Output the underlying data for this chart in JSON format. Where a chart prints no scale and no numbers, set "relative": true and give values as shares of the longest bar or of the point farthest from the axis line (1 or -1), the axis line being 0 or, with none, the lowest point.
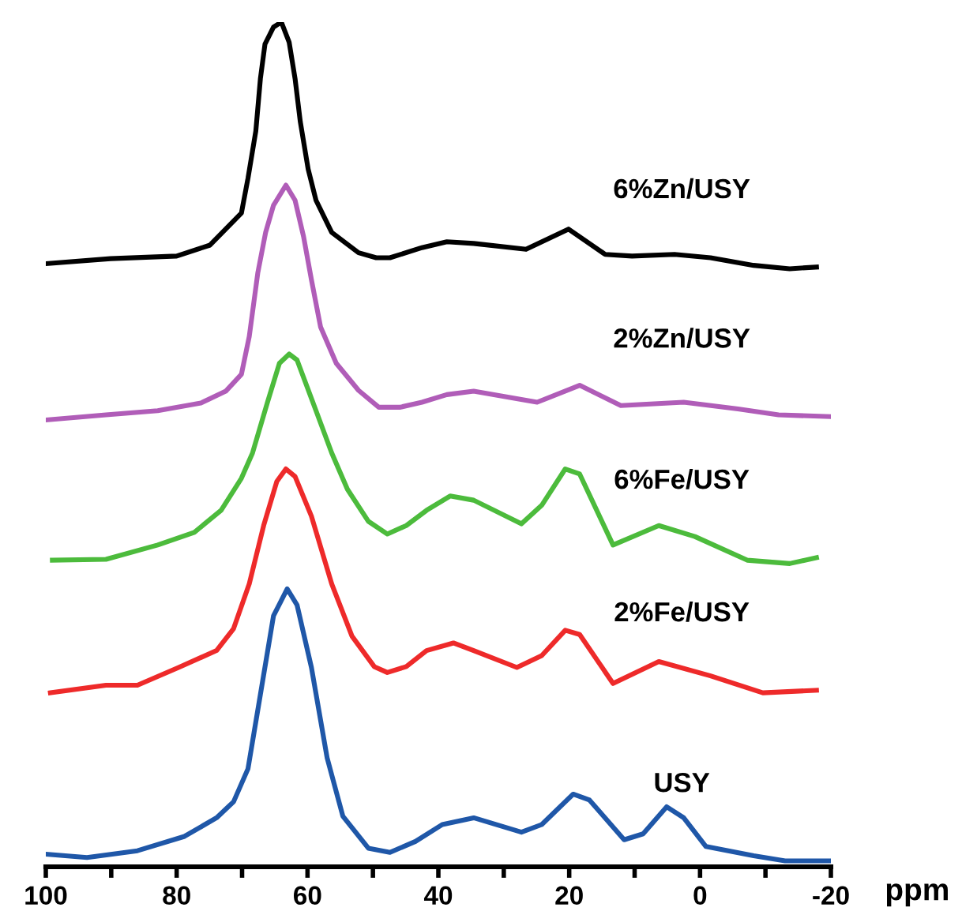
{
  "chart_data": {
    "type": "line",
    "relative": true,
    "xlabel": "ppm",
    "xlim": [
      100,
      -20
    ],
    "xticks": [
      100,
      {
        "value": 90,
        "label": null
      },
      80,
      {
        "value": 70,
        "label": null
      },
      60,
      {
        "value": 50,
        "label": null
      },
      40,
      {
        "value": 30,
        "label": null
      },
      20,
      {
        "value": 10,
        "label": null
      },
      0,
      {
        "value": -10,
        "label": null
      },
      -20
    ],
    "tick_labels": "x",
    "grid": false,
    "legend": false,
    "marker": "none",
    "line_style": "solid",
    "series": [
      {
        "name": "6%Zn/USY",
        "color": "#000000",
        "x": [
          100,
          90.1,
          80.0,
          74.9,
          70.1,
          69.1,
          67.9,
          67.2,
          66.5,
          65.2,
          64.0,
          62.8,
          61.9,
          61.1,
          59.9,
          58.7,
          56.3,
          52.2,
          49.5,
          47.4,
          42.5,
          38.7,
          34.6,
          26.6,
          20.1,
          14.5,
          10.4,
          3.9,
          -1.6,
          -8.2,
          -13.7,
          -17.8
        ],
        "values": [
          0.714,
          0.72,
          0.723,
          0.736,
          0.774,
          0.815,
          0.871,
          0.933,
          0.974,
          0.994,
          1.0,
          0.976,
          0.933,
          0.882,
          0.826,
          0.789,
          0.751,
          0.727,
          0.721,
          0.721,
          0.733,
          0.74,
          0.738,
          0.731,
          0.755,
          0.725,
          0.723,
          0.725,
          0.721,
          0.712,
          0.708,
          0.71
        ]
      },
      {
        "name": "2%Zn/USY",
        "color": "#b05db8",
        "x": [
          100,
          90.8,
          82.9,
          76.3,
          72.5,
          70.1,
          68.9,
          67.6,
          66.4,
          65.2,
          63.3,
          61.9,
          60.6,
          59.4,
          58.0,
          55.6,
          52.2,
          49.1,
          45.9,
          42.5,
          38.7,
          34.6,
          24.9,
          18.4,
          12.1,
          2.5,
          -5.8,
          -12.0,
          -19.8
        ],
        "values": [
          0.529,
          0.535,
          0.54,
          0.549,
          0.563,
          0.583,
          0.628,
          0.703,
          0.751,
          0.783,
          0.807,
          0.789,
          0.746,
          0.695,
          0.639,
          0.596,
          0.564,
          0.544,
          0.544,
          0.55,
          0.559,
          0.563,
          0.55,
          0.57,
          0.546,
          0.55,
          0.542,
          0.535,
          0.533
        ]
      },
      {
        "name": "6%Fe/USY",
        "color": "#4cbb3c",
        "x": [
          99.0,
          90.8,
          82.9,
          77.3,
          73.2,
          70.1,
          68.4,
          66.0,
          64.3,
          62.8,
          61.6,
          58.7,
          56.3,
          53.9,
          50.7,
          47.8,
          44.9,
          41.8,
          38.2,
          34.6,
          27.3,
          24.2,
          20.6,
          18.4,
          13.3,
          6.3,
          0.8,
          -7.2,
          -13.7,
          -17.8
        ],
        "values": [
          0.363,
          0.364,
          0.381,
          0.396,
          0.422,
          0.46,
          0.49,
          0.553,
          0.596,
          0.607,
          0.6,
          0.54,
          0.49,
          0.447,
          0.409,
          0.394,
          0.404,
          0.422,
          0.439,
          0.434,
          0.406,
          0.428,
          0.471,
          0.465,
          0.381,
          0.404,
          0.391,
          0.363,
          0.359,
          0.366
        ]
      },
      {
        "name": "2%Fe/USY",
        "color": "#ee2a2a",
        "x": [
          99.3,
          90.8,
          86.0,
          79.7,
          73.9,
          71.3,
          68.9,
          66.7,
          64.7,
          63.3,
          61.9,
          59.4,
          56.3,
          53.2,
          49.8,
          47.8,
          44.9,
          41.8,
          37.7,
          34.6,
          28.0,
          24.2,
          20.6,
          18.4,
          13.3,
          6.3,
          -1.6,
          -9.6,
          -17.8
        ],
        "values": [
          0.206,
          0.215,
          0.215,
          0.236,
          0.256,
          0.282,
          0.335,
          0.404,
          0.456,
          0.471,
          0.462,
          0.415,
          0.335,
          0.273,
          0.237,
          0.23,
          0.237,
          0.256,
          0.265,
          0.256,
          0.236,
          0.25,
          0.28,
          0.275,
          0.217,
          0.243,
          0.226,
          0.206,
          0.209
        ]
      },
      {
        "name": "USY",
        "color": "#1f57a8",
        "x": [
          100,
          93.7,
          86.0,
          78.8,
          73.9,
          71.3,
          69.1,
          67.2,
          65.2,
          63.1,
          61.6,
          59.4,
          57.0,
          54.6,
          50.7,
          47.4,
          43.5,
          39.4,
          34.6,
          27.3,
          24.2,
          19.4,
          16.9,
          11.6,
          8.7,
          5.1,
          2.5,
          -0.9,
          -8.2,
          -13.0,
          -20
        ],
        "values": [
          0.015,
          0.011,
          0.019,
          0.036,
          0.058,
          0.077,
          0.116,
          0.204,
          0.297,
          0.329,
          0.31,
          0.236,
          0.129,
          0.06,
          0.022,
          0.017,
          0.03,
          0.05,
          0.058,
          0.041,
          0.05,
          0.086,
          0.079,
          0.032,
          0.039,
          0.071,
          0.058,
          0.024,
          0.013,
          0.007,
          0.007
        ]
      }
    ]
  }
}
